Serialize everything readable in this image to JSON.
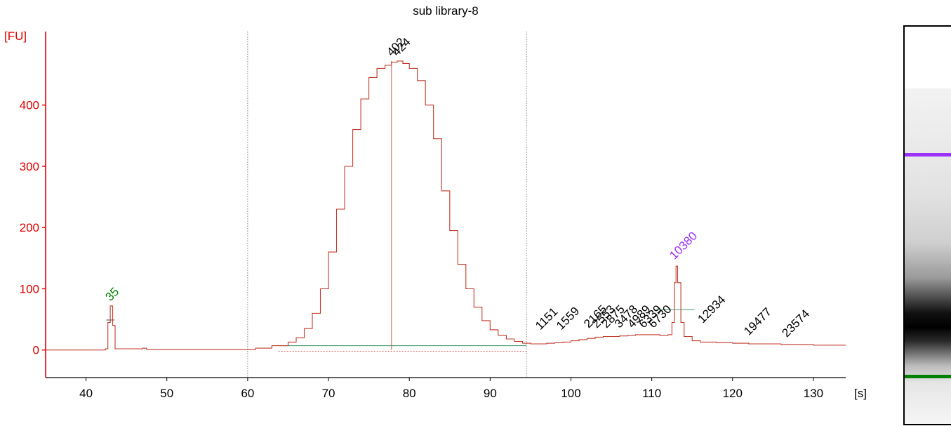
{
  "title": "sub library-8",
  "colors": {
    "axis": "#e00000",
    "trace": "#c0392b",
    "lower_marker": "#008000",
    "upper_marker": "#9b30ff",
    "peak_label": "#000000",
    "baseline": "#2e8b57"
  },
  "chart_data": {
    "type": "line",
    "title": "sub library-8",
    "xlabel": "[s]",
    "ylabel": "[FU]",
    "xlim": [
      35,
      134
    ],
    "ylim": [
      -45,
      520
    ],
    "xticks": [
      40,
      50,
      60,
      70,
      80,
      90,
      100,
      110,
      120,
      130
    ],
    "yticks": [
      0,
      100,
      200,
      300,
      400
    ],
    "grid": false,
    "region_lines_x": [
      60,
      94.5
    ],
    "series": [
      {
        "x": [
          35,
          42.4,
          42.7,
          43.0,
          43.3,
          43.6,
          46.5,
          47.0,
          47.5,
          60,
          61,
          63,
          65,
          66,
          67,
          68,
          69,
          70,
          71,
          72,
          73,
          74,
          75,
          76,
          77,
          77.8,
          78.5,
          79.2,
          80,
          81,
          82,
          83,
          84,
          85,
          86,
          87,
          88,
          89,
          90,
          91,
          92,
          93,
          94,
          95,
          96,
          97,
          98,
          99,
          100,
          101,
          102,
          103,
          104,
          105,
          106,
          107,
          108,
          109,
          110,
          111,
          112,
          112.5,
          112.8,
          113.0,
          113.2,
          113.6,
          114,
          115,
          116,
          118,
          120,
          122,
          124,
          126,
          128,
          130,
          132,
          134
        ],
        "y": [
          0,
          2,
          45,
          72,
          40,
          2,
          2,
          3,
          1,
          1,
          3,
          7,
          13,
          20,
          35,
          60,
          100,
          160,
          230,
          300,
          360,
          410,
          445,
          460,
          465,
          470,
          472,
          468,
          460,
          440,
          400,
          345,
          260,
          195,
          140,
          100,
          70,
          48,
          33,
          24,
          18,
          14,
          11,
          10,
          10,
          11,
          12,
          13,
          15,
          17,
          19,
          21,
          22,
          22,
          23,
          24,
          25,
          25,
          25,
          24,
          25,
          45,
          110,
          137,
          110,
          45,
          22,
          15,
          13,
          12,
          11,
          10,
          10,
          9,
          9,
          8,
          8,
          8
        ]
      }
    ],
    "annotations": [
      {
        "text": "35",
        "x": 43.0,
        "y": 72,
        "color": "lower_marker"
      },
      {
        "text": "402",
        "x": 77.8,
        "y": 472,
        "color": "peak_label"
      },
      {
        "text": "424",
        "x": 78.5,
        "y": 472,
        "color": "peak_label"
      },
      {
        "text": "1151",
        "x": 96.2,
        "y": 25,
        "color": "peak_label"
      },
      {
        "text": "1559",
        "x": 98.8,
        "y": 25,
        "color": "peak_label"
      },
      {
        "text": "2165",
        "x": 102.2,
        "y": 28,
        "color": "peak_label"
      },
      {
        "text": "2553",
        "x": 103.2,
        "y": 28,
        "color": "peak_label"
      },
      {
        "text": "2875",
        "x": 104.4,
        "y": 28,
        "color": "peak_label"
      },
      {
        "text": "3478",
        "x": 106.0,
        "y": 28,
        "color": "peak_label"
      },
      {
        "text": "4989",
        "x": 107.6,
        "y": 28,
        "color": "peak_label"
      },
      {
        "text": "6339",
        "x": 109.0,
        "y": 28,
        "color": "peak_label"
      },
      {
        "text": "6730",
        "x": 110.2,
        "y": 28,
        "color": "peak_label"
      },
      {
        "text": "10380",
        "x": 112.8,
        "y": 140,
        "color": "upper_marker"
      },
      {
        "text": "12934",
        "x": 116.3,
        "y": 36,
        "color": "peak_label"
      },
      {
        "text": "19477",
        "x": 122.0,
        "y": 16,
        "color": "peak_label"
      },
      {
        "text": "23574",
        "x": 126.7,
        "y": 13,
        "color": "peak_label"
      }
    ]
  }
}
